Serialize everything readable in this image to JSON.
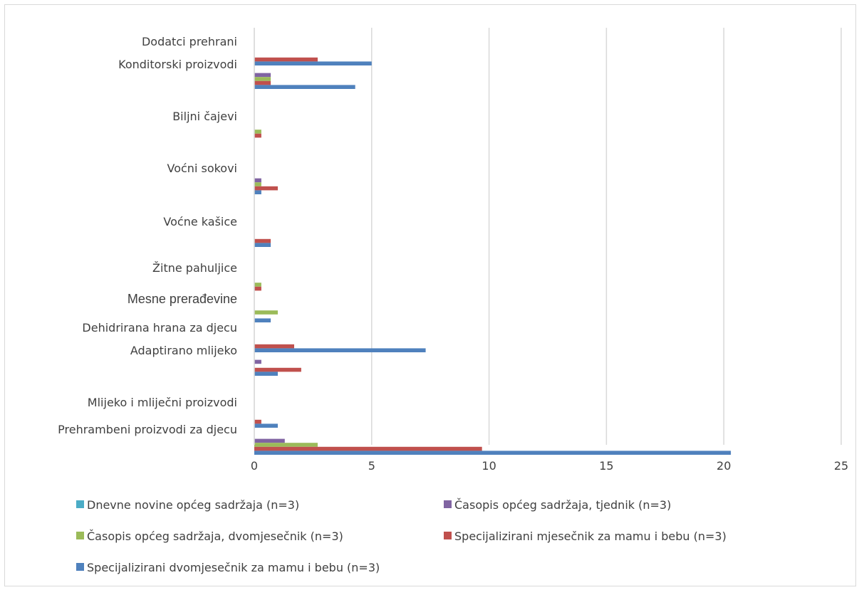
{
  "chart_data": {
    "type": "bar",
    "orientation": "horizontal",
    "title": "",
    "xlabel": "",
    "ylabel": "",
    "xlim": [
      0,
      25
    ],
    "x_ticks": [
      "0",
      "5",
      "10",
      "15",
      "20",
      "25"
    ],
    "grid": "vertical",
    "legend_position": "bottom",
    "categories": [
      "Dodatci prehrani",
      "Konditorski proizvodi",
      "Biljni čajevi",
      "Voćni sokovi",
      "Voćne kašice",
      "Žitne pahuljice",
      "Mesne prerađevine",
      "Dehidrirana hrana za djecu",
      "Adaptirano mlijeko",
      "Mlijeko i mliječni proizvodi",
      "Prehrambeni proizvodi za djecu"
    ],
    "series": [
      {
        "name": "Dnevne novine općeg sadržaja (n=3)",
        "color": "#4bacc6",
        "values": [
          0,
          0,
          0,
          0,
          0,
          0,
          0,
          0,
          0,
          0,
          0
        ]
      },
      {
        "name": "Časopis općeg sadržaja, tjednik (n=3)",
        "color": "#8064a2",
        "values": [
          0,
          0.7,
          0,
          0.3,
          0,
          0,
          0,
          0,
          0.3,
          0,
          1.3
        ]
      },
      {
        "name": "Časopis općeg sadržaja, dvomjesečnik (n=3)",
        "color": "#9bbb59",
        "values": [
          0,
          0.7,
          0.3,
          0.3,
          0,
          0.3,
          1.0,
          0,
          0,
          0,
          2.7
        ]
      },
      {
        "name": "Specijalizirani mjesečnik za mamu i bebu (n=3)",
        "color": "#c0504d",
        "values": [
          2.7,
          0.7,
          0.3,
          1.0,
          0.7,
          0.3,
          0,
          1.7,
          2.0,
          0.3,
          9.7
        ]
      },
      {
        "name": "Specijalizirani dvomjesečnik za mamu i bebu (n=3)",
        "color": "#4f81bd",
        "values": [
          5.0,
          4.3,
          0,
          0.3,
          0.7,
          0,
          0.7,
          7.3,
          1.0,
          1.0,
          20.3
        ]
      }
    ]
  }
}
